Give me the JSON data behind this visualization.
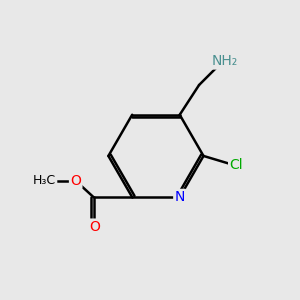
{
  "background_color": "#e8e8e8",
  "atom_colors": {
    "N": "#0000ff",
    "O": "#ff0000",
    "Cl": "#00aa00",
    "C": "#000000",
    "H": "#4a9090"
  },
  "bond_color": "#000000",
  "bond_width": 1.8,
  "figsize": [
    3.0,
    3.0
  ],
  "dpi": 100
}
